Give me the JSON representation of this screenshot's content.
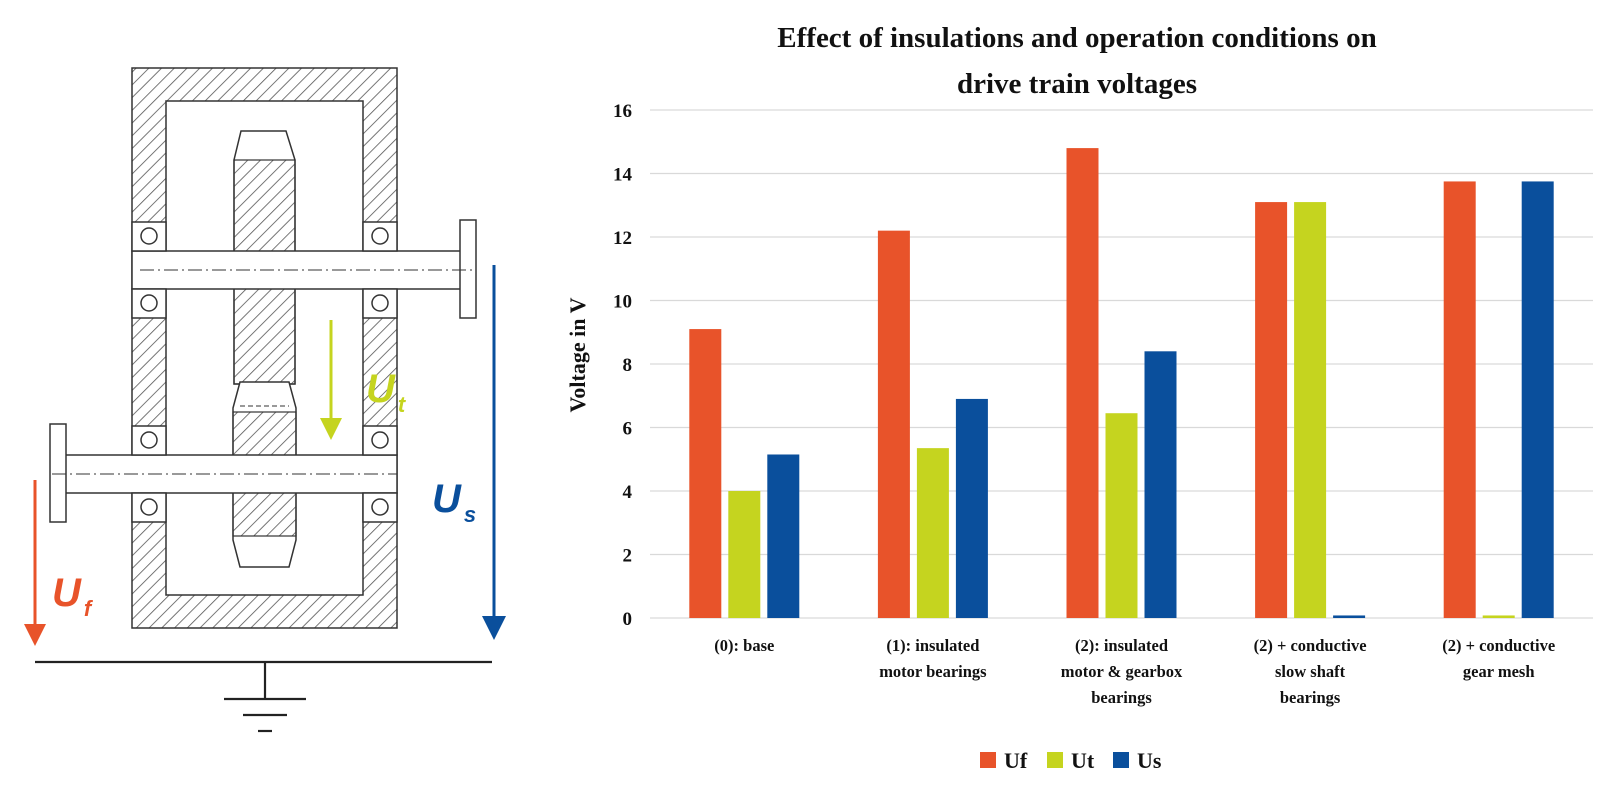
{
  "diagram": {
    "labels": [
      {
        "id": "uf",
        "main": "U",
        "sub": "f"
      },
      {
        "id": "ut",
        "main": "U",
        "sub": "t"
      },
      {
        "id": "us",
        "main": "U",
        "sub": "s"
      }
    ]
  },
  "colors": {
    "uf": "#e8532a",
    "ut": "#c5d41f",
    "us": "#0a4f9c",
    "grid": "#d9d9d9",
    "hatch": "#555555"
  },
  "chart_data": {
    "type": "bar",
    "title_lines": [
      "Effect of insulations and operation conditions on",
      "drive train voltages"
    ],
    "ylabel": "Voltage in V",
    "xlabel": "",
    "ylim": [
      0,
      16
    ],
    "yticks": [
      "0",
      "2",
      "4",
      "6",
      "8",
      "10",
      "12",
      "14",
      "16"
    ],
    "grid": "horizontal",
    "legend_position": "bottom",
    "categories": [
      [
        "(0): base"
      ],
      [
        "(1): insulated",
        "motor bearings"
      ],
      [
        "(2): insulated",
        "motor & gearbox",
        "bearings"
      ],
      [
        "(2) + conductive",
        "slow shaft",
        "bearings"
      ],
      [
        "(2) + conductive",
        "gear mesh"
      ]
    ],
    "series": [
      {
        "name": "Uf",
        "values": [
          9.1,
          12.2,
          14.8,
          13.1,
          13.75
        ]
      },
      {
        "name": "Ut",
        "values": [
          4.0,
          5.35,
          6.45,
          13.1,
          0.08
        ]
      },
      {
        "name": "Us",
        "values": [
          5.15,
          6.9,
          8.4,
          0.08,
          13.75
        ]
      }
    ]
  }
}
